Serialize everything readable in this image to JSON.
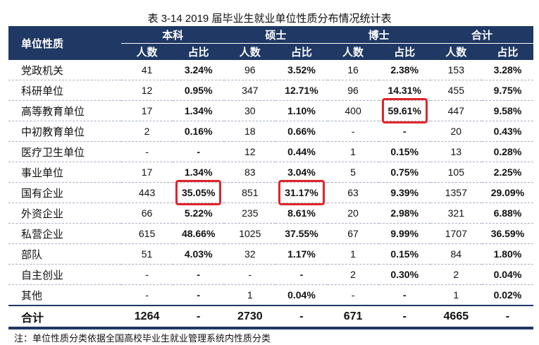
{
  "title": "表 3-14   2019 届毕业生就业单位性质分布情况统计表",
  "header": {
    "category": "单位性质",
    "groups": [
      "本科",
      "硕士",
      "博士",
      "合计"
    ],
    "sub": [
      "人数",
      "占比"
    ]
  },
  "rows": [
    {
      "label": "党政机关",
      "values": [
        "41",
        "3.24%",
        "96",
        "3.52%",
        "16",
        "2.38%",
        "153",
        "3.28%"
      ]
    },
    {
      "label": "科研单位",
      "values": [
        "12",
        "0.95%",
        "347",
        "12.71%",
        "96",
        "14.31%",
        "455",
        "9.75%"
      ]
    },
    {
      "label": "高等教育单位",
      "values": [
        "17",
        "1.34%",
        "30",
        "1.10%",
        "400",
        "59.61%",
        "447",
        "9.58%"
      ]
    },
    {
      "label": "中初教育单位",
      "values": [
        "2",
        "0.16%",
        "18",
        "0.66%",
        "-",
        "-",
        "20",
        "0.43%"
      ]
    },
    {
      "label": "医疗卫生单位",
      "values": [
        "-",
        "-",
        "12",
        "0.44%",
        "1",
        "0.15%",
        "13",
        "0.28%"
      ]
    },
    {
      "label": "事业单位",
      "values": [
        "17",
        "1.34%",
        "83",
        "3.04%",
        "5",
        "0.75%",
        "105",
        "2.25%"
      ]
    },
    {
      "label": "国有企业",
      "values": [
        "443",
        "35.05%",
        "851",
        "31.17%",
        "63",
        "9.39%",
        "1357",
        "29.09%"
      ]
    },
    {
      "label": "外资企业",
      "values": [
        "66",
        "5.22%",
        "235",
        "8.61%",
        "20",
        "2.98%",
        "321",
        "6.88%"
      ]
    },
    {
      "label": "私营企业",
      "values": [
        "615",
        "48.66%",
        "1025",
        "37.55%",
        "67",
        "9.99%",
        "1707",
        "36.59%"
      ]
    },
    {
      "label": "部队",
      "values": [
        "51",
        "4.03%",
        "32",
        "1.17%",
        "1",
        "0.15%",
        "84",
        "1.80%"
      ]
    },
    {
      "label": "自主创业",
      "values": [
        "-",
        "-",
        "-",
        "-",
        "2",
        "0.30%",
        "2",
        "0.04%"
      ]
    },
    {
      "label": "其他",
      "values": [
        "-",
        "-",
        "1",
        "0.04%",
        "-",
        "-",
        "1",
        "0.02%"
      ]
    }
  ],
  "total": {
    "label": "合计",
    "values": [
      "1264",
      "-",
      "2730",
      "-",
      "671",
      "-",
      "4665",
      "-"
    ]
  },
  "highlighted_cells": [
    {
      "row": "高等教育单位",
      "column": "博士 占比"
    },
    {
      "row": "国有企业",
      "column": "本科 占比"
    },
    {
      "row": "国有企业",
      "column": "硕士 占比"
    }
  ],
  "highlight_color": "#e0242a",
  "header_color": "#1f3864",
  "note": "注：单位性质分类依据全国高校毕业生就业管理系统内性质分类"
}
